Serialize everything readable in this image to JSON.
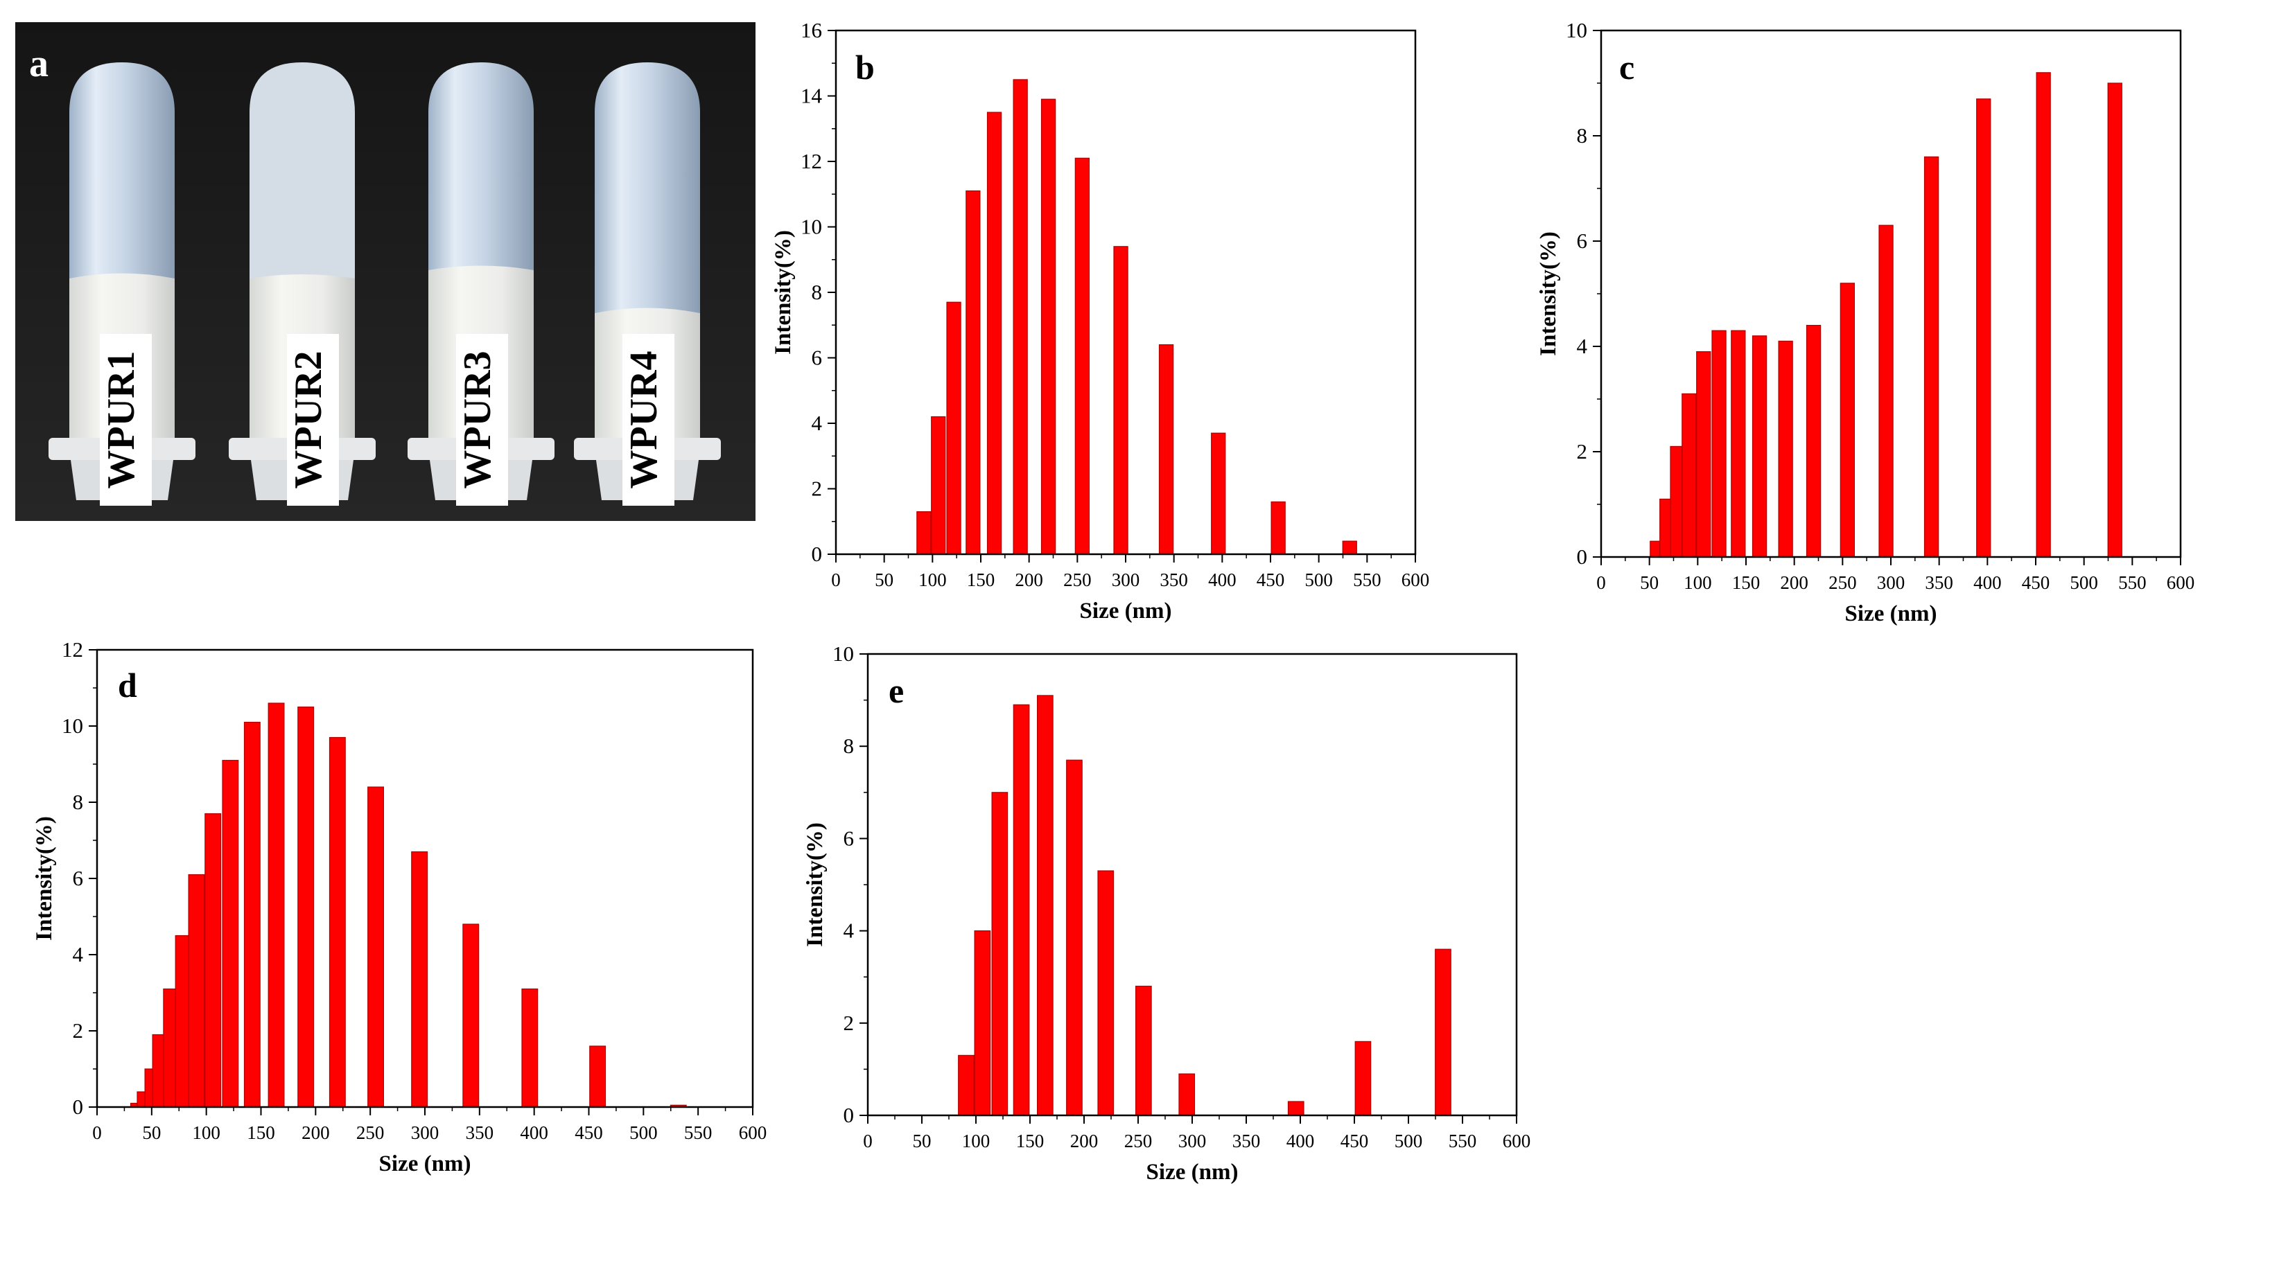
{
  "photo": {
    "panel_label": "a",
    "tubes": [
      "WPUR1",
      "WPUR2",
      "WPUR3",
      "WPUR4"
    ]
  },
  "colors": {
    "bar": "#ff0000",
    "bar_edge": "#b00000",
    "axis": "#000000"
  },
  "chart_data": [
    {
      "id": "b",
      "type": "bar",
      "panel_label": "b",
      "title": "",
      "xlabel": "Size (nm)",
      "ylabel": "Intensity(%)",
      "xlim": [
        0,
        600
      ],
      "ylim": [
        0,
        16
      ],
      "xticks": [
        0,
        50,
        100,
        150,
        200,
        250,
        300,
        350,
        400,
        450,
        500,
        550,
        600
      ],
      "yticks": [
        0,
        2,
        4,
        6,
        8,
        10,
        12,
        14,
        16
      ],
      "x": [
        91,
        106,
        122,
        142,
        164,
        191,
        220,
        255,
        295,
        342,
        396,
        458,
        532
      ],
      "values": [
        1.3,
        4.2,
        7.7,
        11.1,
        13.5,
        14.5,
        13.9,
        12.1,
        9.4,
        6.4,
        3.7,
        1.6,
        0.4
      ]
    },
    {
      "id": "c",
      "type": "bar",
      "panel_label": "c",
      "title": "",
      "xlabel": "Size (nm)",
      "ylabel": "Intensity(%)",
      "xlim": [
        0,
        600
      ],
      "ylim": [
        0,
        10
      ],
      "xticks": [
        0,
        50,
        100,
        150,
        200,
        250,
        300,
        350,
        400,
        450,
        500,
        550,
        600
      ],
      "yticks": [
        0,
        2,
        4,
        6,
        8,
        10
      ],
      "x": [
        58,
        68,
        79,
        91,
        106,
        122,
        142,
        164,
        191,
        220,
        255,
        295,
        342,
        396,
        458,
        532
      ],
      "values": [
        0.3,
        1.1,
        2.1,
        3.1,
        3.9,
        4.3,
        4.3,
        4.2,
        4.1,
        4.4,
        5.2,
        6.3,
        7.6,
        8.7,
        9.2,
        9.0
      ]
    },
    {
      "id": "d",
      "type": "bar",
      "panel_label": "d",
      "title": "",
      "xlabel": "Size (nm)",
      "ylabel": "Intensity(%)",
      "xlim": [
        0,
        600
      ],
      "ylim": [
        0,
        12
      ],
      "xticks": [
        0,
        50,
        100,
        150,
        200,
        250,
        300,
        350,
        400,
        450,
        500,
        550,
        600
      ],
      "yticks": [
        0,
        2,
        4,
        6,
        8,
        10,
        12
      ],
      "x": [
        38,
        44,
        51,
        58,
        68,
        79,
        91,
        106,
        122,
        142,
        164,
        191,
        220,
        255,
        295,
        342,
        396,
        458,
        532
      ],
      "values": [
        0.1,
        0.4,
        1.0,
        1.9,
        3.1,
        4.5,
        6.1,
        7.7,
        9.1,
        10.1,
        10.6,
        10.5,
        9.7,
        8.4,
        6.7,
        4.8,
        3.1,
        1.6,
        0.05
      ]
    },
    {
      "id": "e",
      "type": "bar",
      "panel_label": "e",
      "title": "",
      "xlabel": "Size (nm)",
      "ylabel": "Intensity(%)",
      "xlim": [
        0,
        600
      ],
      "ylim": [
        0,
        10
      ],
      "xticks": [
        0,
        50,
        100,
        150,
        200,
        250,
        300,
        350,
        400,
        450,
        500,
        550,
        600
      ],
      "yticks": [
        0,
        2,
        4,
        6,
        8,
        10
      ],
      "x": [
        91,
        106,
        122,
        142,
        164,
        191,
        220,
        255,
        295,
        396,
        458,
        532
      ],
      "values": [
        1.3,
        4.0,
        7.0,
        8.9,
        9.1,
        7.7,
        5.3,
        2.8,
        0.9,
        0.3,
        1.6,
        3.6
      ]
    }
  ]
}
